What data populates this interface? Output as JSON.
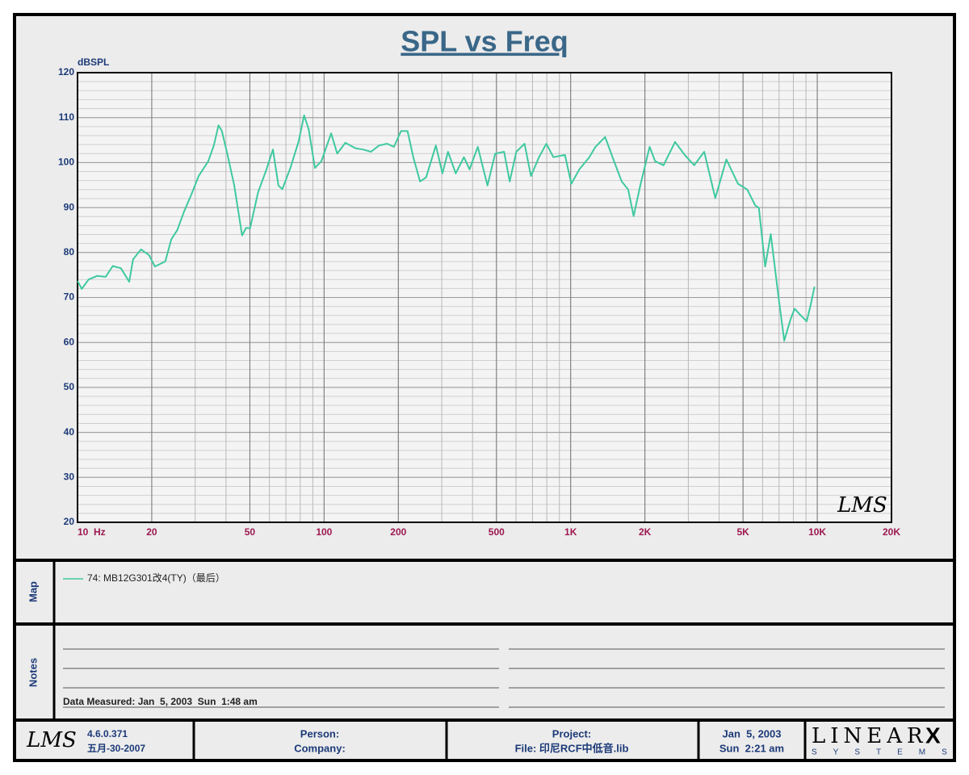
{
  "chart_data": {
    "type": "line",
    "title": "SPL vs Freq",
    "y_label": "dBSPL",
    "log_x": true,
    "grid": true,
    "minor_grid": true,
    "xlim": [
      10,
      20000
    ],
    "ylim": [
      20,
      120
    ],
    "xticks": [
      {
        "value": 10,
        "label": "10  Hz"
      },
      20,
      50,
      100,
      200,
      500,
      {
        "value": 1000,
        "label": "1K"
      },
      {
        "value": 2000,
        "label": "2K"
      },
      {
        "value": 5000,
        "label": "5K"
      },
      {
        "value": 10000,
        "label": "10K"
      },
      {
        "value": 20000,
        "label": "20K"
      }
    ],
    "yticks": [
      20,
      30,
      40,
      50,
      60,
      70,
      80,
      90,
      100,
      110,
      120
    ],
    "x": [
      10,
      10.4,
      11.1,
      12,
      13,
      13.9,
      15,
      16.2,
      16.8,
      18.1,
      19.5,
      20.6,
      22.7,
      24,
      25.4,
      27,
      29,
      31,
      33.9,
      35.7,
      37.3,
      38.5,
      40.6,
      43.2,
      46.5,
      48.3,
      50.1,
      54,
      58.3,
      62,
      65.3,
      67.7,
      73,
      78.8,
      83,
      86.6,
      91.8,
      97.5,
      106.8,
      113,
      122,
      134,
      144,
      155,
      167,
      180,
      192,
      205,
      218,
      230,
      245,
      259,
      284,
      302,
      318,
      342,
      369,
      389,
      420,
      460,
      494,
      537,
      566,
      602,
      650,
      690,
      744,
      797,
      851,
      948,
      1006,
      1085,
      1190,
      1260,
      1380,
      1490,
      1610,
      1710,
      1800,
      1910,
      2090,
      2200,
      2380,
      2650,
      2900,
      3170,
      3480,
      3860,
      4280,
      4770,
      5200,
      5600,
      5800,
      6150,
      6480,
      6980,
      7350,
      7800,
      8100,
      8540,
      9060,
      9400,
      9750
    ],
    "series": [
      {
        "name": "74: MB12G301改4(TY)（最后）",
        "color": "#3fc9a0",
        "values": [
          73.7,
          71.9,
          74,
          74.8,
          74.6,
          77,
          76.5,
          73.5,
          78.5,
          80.7,
          79.4,
          76.9,
          78,
          82.9,
          85,
          89,
          93,
          97,
          100.3,
          103.8,
          108.3,
          107,
          101.7,
          94.9,
          83.8,
          85.5,
          85.4,
          93.4,
          98.4,
          102.9,
          94.9,
          94.1,
          98.8,
          104.7,
          110.5,
          107.4,
          98.8,
          100.3,
          106.5,
          102,
          104.4,
          103.2,
          102.9,
          102.4,
          103.8,
          104.2,
          103.5,
          107,
          107,
          101.2,
          95.8,
          96.7,
          103.8,
          97.6,
          102.4,
          97.6,
          101.2,
          98.5,
          103.5,
          94.9,
          102,
          102.4,
          95.8,
          102.4,
          104.2,
          97,
          101.2,
          104.2,
          101.2,
          101.7,
          95.3,
          98.5,
          101.2,
          103.5,
          105.7,
          100.7,
          95.8,
          94,
          88.1,
          94.6,
          103.5,
          100.3,
          99.4,
          104.6,
          101.7,
          99.4,
          102.4,
          92.1,
          100.7,
          95.3,
          94,
          90.5,
          89.9,
          76.9,
          84.1,
          69.7,
          60.4,
          65.2,
          67.5,
          66.1,
          64.7,
          68.3,
          72.4
        ]
      }
    ]
  },
  "logo": "LMS",
  "map_label": "Map",
  "notes_label": "Notes",
  "notes_text": "Data Measured: Jan  5, 2003  Sun  1:48 am",
  "footer": {
    "version": "4.6.0.371",
    "build_date": "五月-30-2007",
    "person": "Person:",
    "company": "Company:",
    "project": "Project:",
    "file": "File: 印尼RCF中低音.lib",
    "date": "Jan  5, 2003",
    "time": "Sun  2:21 am",
    "brand": "LINEAR",
    "brand_x": "X",
    "brand_sub": "SYSTEMS"
  }
}
